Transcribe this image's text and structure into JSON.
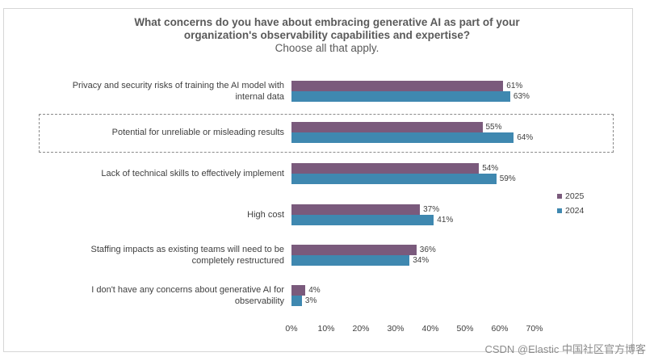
{
  "chart_data": {
    "type": "bar",
    "orientation": "horizontal",
    "title": "What concerns do you have about embracing generative AI as part of your organization's observability capabilities and expertise?",
    "subtitle": "Choose all that apply.",
    "categories": [
      "Privacy and security risks of training the AI model with internal data",
      "Potential for unreliable or misleading results",
      "Lack of technical skills to effectively implement",
      "High cost",
      "Staffing impacts as existing teams will need to be completely restructured",
      "I don't have any concerns about generative AI for observability"
    ],
    "series": [
      {
        "name": "2025",
        "values": [
          61,
          55,
          54,
          37,
          36,
          4
        ]
      },
      {
        "name": "2024",
        "values": [
          63,
          64,
          59,
          41,
          34,
          3
        ]
      }
    ],
    "xlim": [
      0,
      70
    ],
    "xticks": [
      "0%",
      "10%",
      "20%",
      "30%",
      "40%",
      "50%",
      "60%",
      "70%"
    ],
    "value_suffix": "%",
    "legend_position": "right",
    "highlighted_category_index": 1
  },
  "title_line1": "What concerns do you have about embracing generative AI as part of your",
  "title_line2": "organization's observability capabilities and expertise?",
  "subtitle": "Choose all that apply.",
  "category_lines": [
    [
      "Privacy and security risks of training the AI model with",
      "internal data"
    ],
    [
      "Potential for unreliable or misleading results"
    ],
    [
      "Lack of technical skills to effectively implement"
    ],
    [
      "High cost"
    ],
    [
      "Staffing impacts as existing teams will need to be",
      "completely restructured"
    ],
    [
      "I don't have any concerns about generative AI for",
      "observability"
    ]
  ],
  "colors": {
    "s2025": "#7a5a7c",
    "s2024": "#3f88b0"
  },
  "watermark": "CSDN @Elastic 中国社区官方博客"
}
